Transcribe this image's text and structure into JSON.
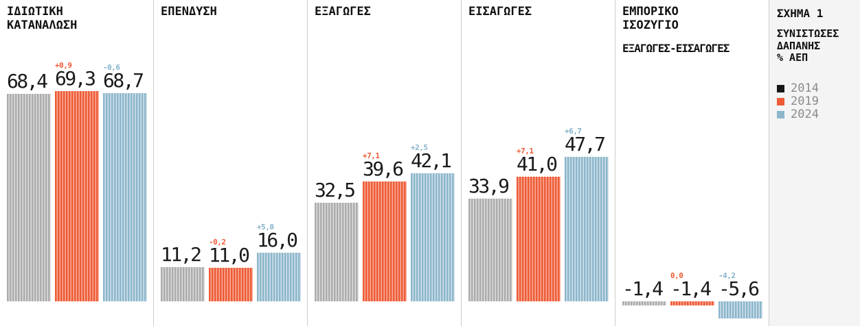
{
  "figure": {
    "label": "ΣΧΗΜΑ 1",
    "subtitle": "ΣΥΝΙΣΤΩΣΕΣ\nΔΑΠΑΝΗΣ\n% ΑΕΠ",
    "legend_items": [
      {
        "year": "2014",
        "swatch_color": "#161616"
      },
      {
        "year": "2019",
        "swatch_color": "#EE5B36"
      },
      {
        "year": "2024",
        "swatch_color": "#8CB6CB"
      }
    ]
  },
  "colors": {
    "background": "#FFFFFF",
    "legend_panel_background": "#F4F4F4",
    "divider": "#CCCCCC",
    "text": "#1A1A1A",
    "legend_year_text": "#8A8A8A",
    "series": {
      "2014": {
        "stripe_dark": "#ACACAC",
        "stripe_light": "#DEDEDE",
        "delta_text": "#ACACAC"
      },
      "2019": {
        "stripe_dark": "#EE5B36",
        "stripe_light": "#F8AF9C",
        "delta_text": "#EE5B36"
      },
      "2024": {
        "stripe_dark": "#8CB6CB",
        "stripe_light": "#D2E3EB",
        "delta_text": "#85B2CA"
      }
    }
  },
  "panels": [
    {
      "title": "ΙΔΙΩΤΙΚΗ\nΚΑΤΑΝΑΛΩΣΗ",
      "subtitle": "",
      "bars": [
        {
          "year": "2014",
          "value": 68.4,
          "label": "68,4",
          "delta": ""
        },
        {
          "year": "2019",
          "value": 69.3,
          "label": "69,3",
          "delta": "+0,9"
        },
        {
          "year": "2024",
          "value": 68.7,
          "label": "68,7",
          "delta": "-0,6"
        }
      ]
    },
    {
      "title": "ΕΠΕΝΔΥΣΗ",
      "subtitle": "",
      "bars": [
        {
          "year": "2014",
          "value": 11.2,
          "label": "11,2",
          "delta": ""
        },
        {
          "year": "2019",
          "value": 11.0,
          "label": "11,0",
          "delta": "-0,2"
        },
        {
          "year": "2024",
          "value": 16.0,
          "label": "16,0",
          "delta": "+5,0"
        }
      ]
    },
    {
      "title": "ΕΞΑΓΩΓΕΣ",
      "subtitle": "",
      "bars": [
        {
          "year": "2014",
          "value": 32.5,
          "label": "32,5",
          "delta": ""
        },
        {
          "year": "2019",
          "value": 39.6,
          "label": "39,6",
          "delta": "+7,1"
        },
        {
          "year": "2024",
          "value": 42.1,
          "label": "42,1",
          "delta": "+2,5"
        }
      ]
    },
    {
      "title": "ΕΙΣΑΓΩΓΕΣ",
      "subtitle": "",
      "bars": [
        {
          "year": "2014",
          "value": 33.9,
          "label": "33,9",
          "delta": ""
        },
        {
          "year": "2019",
          "value": 41.0,
          "label": "41,0",
          "delta": "+7,1"
        },
        {
          "year": "2024",
          "value": 47.7,
          "label": "47,7",
          "delta": "+6,7"
        }
      ]
    },
    {
      "title": "ΕΜΠΟΡΙΚΟ\nΙΣΟΖΥΓΙΟ",
      "subtitle": "ΕΞΑΓΩΓΕΣ-ΕΙΣΑΓΩΓΕΣ",
      "bars": [
        {
          "year": "2014",
          "value": -1.4,
          "label": "-1,4",
          "delta": ""
        },
        {
          "year": "2019",
          "value": -1.4,
          "label": "-1,4",
          "delta": "0,0"
        },
        {
          "year": "2024",
          "value": -5.6,
          "label": "-5,6",
          "delta": "-4,2"
        }
      ]
    }
  ],
  "chart_data": {
    "type": "bar",
    "title": "ΣΧΗΜΑ 1",
    "subtitle": "ΣΥΝΙΣΤΩΣΕΣ ΔΑΠΑΝΗΣ % ΑΕΠ",
    "ylabel": "% ΑΕΠ",
    "categories": [
      "ΙΔΙΩΤΙΚΗ ΚΑΤΑΝΑΛΩΣΗ",
      "ΕΠΕΝΔΥΣΗ",
      "ΕΞΑΓΩΓΕΣ",
      "ΕΙΣΑΓΩΓΕΣ",
      "ΕΜΠΟΡΙΚΟ ΙΣΟΖΥΓΙΟ ΕΞΑΓΩΓΕΣ-ΕΙΣΑΓΩΓΕΣ"
    ],
    "series": [
      {
        "name": "2014",
        "color": "#ACACAC",
        "values": [
          68.4,
          11.2,
          32.5,
          33.9,
          -1.4
        ]
      },
      {
        "name": "2019",
        "color": "#EE5B36",
        "values": [
          69.3,
          11.0,
          39.6,
          41.0,
          -1.4
        ],
        "delta_labels": [
          "+0,9",
          "-0,2",
          "+7,1",
          "+7,1",
          "0,0"
        ]
      },
      {
        "name": "2024",
        "color": "#8CB6CB",
        "values": [
          68.7,
          16.0,
          42.1,
          47.7,
          -5.6
        ],
        "delta_labels": [
          "-0,6",
          "+5,0",
          "+2,5",
          "+6,7",
          "-4,2"
        ]
      }
    ],
    "ylim": [
      -8,
      72
    ],
    "grid": false,
    "legend_position": "right",
    "bar_style": "vertical-stripe-hatch"
  }
}
